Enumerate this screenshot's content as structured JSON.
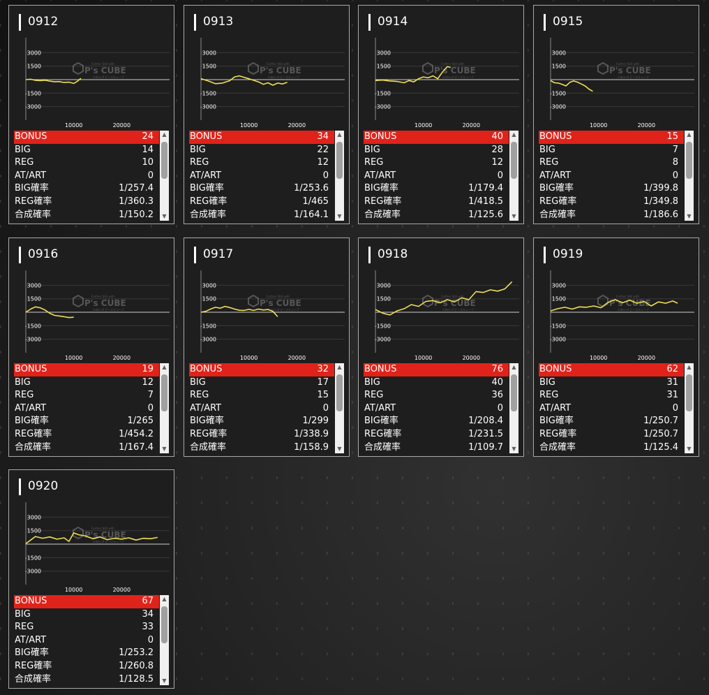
{
  "chart_axis": {
    "y_ticks": [
      "3000",
      "1500",
      "-1500",
      "-3000"
    ],
    "x_ticks": [
      "10000",
      "20000"
    ],
    "ylim": [
      -4200,
      4200
    ],
    "xlim": [
      0,
      30000
    ]
  },
  "watermark": {
    "logo_text": "P's CUBE",
    "tagline": "Further Still with",
    "subline": "index of ピーズキューブ"
  },
  "colors": {
    "line": "#f0e050",
    "bonus_bg": "#e0231a",
    "card_bg": "#1e1e1e"
  },
  "stat_labels": {
    "bonus": "BONUS",
    "big": "BIG",
    "reg": "REG",
    "at": "AT/ART",
    "big_prob": "BIG確率",
    "reg_prob": "REG確率",
    "total_prob": "合成確率"
  },
  "scroll_up_icon": "▲",
  "scroll_down_icon": "▼",
  "cards": [
    {
      "id": "0912",
      "stats": {
        "bonus": "24",
        "big": "14",
        "reg": "10",
        "at": "0",
        "big_prob": "1/257.4",
        "reg_prob": "1/360.3",
        "total_prob": "1/150.2"
      },
      "chart_data": {
        "type": "line",
        "x": [
          0,
          1000,
          2000,
          3000,
          4000,
          5000,
          6000,
          7000,
          8000,
          9000,
          10000,
          10700,
          11500
        ],
        "y": [
          0,
          50,
          -80,
          -120,
          -60,
          -160,
          -240,
          -220,
          -320,
          -280,
          -420,
          -200,
          150
        ]
      }
    },
    {
      "id": "0913",
      "stats": {
        "bonus": "34",
        "big": "22",
        "reg": "12",
        "at": "0",
        "big_prob": "1/253.6",
        "reg_prob": "1/465",
        "total_prob": "1/164.1"
      },
      "chart_data": {
        "type": "line",
        "x": [
          0,
          1500,
          3000,
          4500,
          6000,
          7000,
          8000,
          9000,
          10000,
          11000,
          12000,
          13000,
          14000,
          15000,
          16000,
          17000,
          18000
        ],
        "y": [
          100,
          -150,
          -450,
          -380,
          -120,
          300,
          420,
          250,
          100,
          -80,
          -250,
          -520,
          -350,
          -620,
          -380,
          -480,
          -300
        ]
      }
    },
    {
      "id": "0914",
      "stats": {
        "bonus": "40",
        "big": "28",
        "reg": "12",
        "at": "0",
        "big_prob": "1/179.4",
        "reg_prob": "1/418.5",
        "total_prob": "1/125.6"
      },
      "chart_data": {
        "type": "line",
        "x": [
          0,
          1500,
          3000,
          4500,
          6000,
          7000,
          8000,
          9000,
          10000,
          11000,
          12000,
          13000,
          14000,
          15000,
          15700
        ],
        "y": [
          -100,
          -50,
          -150,
          -200,
          -350,
          -100,
          -250,
          100,
          300,
          200,
          420,
          100,
          850,
          1450,
          1350
        ]
      }
    },
    {
      "id": "0915",
      "stats": {
        "bonus": "15",
        "big": "7",
        "reg": "8",
        "at": "0",
        "big_prob": "1/399.8",
        "reg_prob": "1/349.8",
        "total_prob": "1/186.6"
      },
      "chart_data": {
        "type": "line",
        "x": [
          0,
          800,
          1600,
          2400,
          3200,
          4000,
          4800,
          5600,
          6400,
          7200,
          8000,
          8800
        ],
        "y": [
          -100,
          -350,
          -380,
          -520,
          -700,
          -300,
          -150,
          -280,
          -480,
          -700,
          -1050,
          -1300
        ]
      }
    },
    {
      "id": "0916",
      "stats": {
        "bonus": "19",
        "big": "12",
        "reg": "7",
        "at": "0",
        "big_prob": "1/265",
        "reg_prob": "1/454.2",
        "total_prob": "1/167.4"
      },
      "chart_data": {
        "type": "line",
        "x": [
          0,
          1000,
          2000,
          3000,
          4000,
          5000,
          6000,
          7000,
          8000,
          9000,
          10000
        ],
        "y": [
          0,
          350,
          600,
          500,
          250,
          -120,
          -350,
          -420,
          -500,
          -600,
          -550
        ]
      }
    },
    {
      "id": "0917",
      "stats": {
        "bonus": "32",
        "big": "17",
        "reg": "15",
        "at": "0",
        "big_prob": "1/299",
        "reg_prob": "1/338.9",
        "total_prob": "1/158.9"
      },
      "chart_data": {
        "type": "line",
        "x": [
          0,
          1000,
          2000,
          3000,
          4000,
          5000,
          6000,
          7000,
          8000,
          9000,
          10000,
          11000,
          12000,
          13000,
          14000,
          15000,
          16000
        ],
        "y": [
          0,
          100,
          350,
          550,
          450,
          650,
          520,
          350,
          220,
          200,
          320,
          200,
          350,
          250,
          300,
          100,
          -500
        ]
      }
    },
    {
      "id": "0918",
      "stats": {
        "bonus": "76",
        "big": "40",
        "reg": "36",
        "at": "0",
        "big_prob": "1/208.4",
        "reg_prob": "1/231.5",
        "total_prob": "1/109.7"
      },
      "chart_data": {
        "type": "line",
        "x": [
          0,
          1500,
          3000,
          4500,
          6000,
          7500,
          9000,
          10500,
          12000,
          13500,
          15000,
          16500,
          18000,
          19500,
          21000,
          22500,
          24000,
          25500,
          27000,
          28500
        ],
        "y": [
          300,
          -100,
          -300,
          150,
          400,
          850,
          650,
          1200,
          1300,
          1050,
          1400,
          1150,
          1600,
          1400,
          2300,
          2200,
          2500,
          2350,
          2600,
          3400
        ]
      }
    },
    {
      "id": "0919",
      "stats": {
        "bonus": "62",
        "big": "31",
        "reg": "31",
        "at": "0",
        "big_prob": "1/250.7",
        "reg_prob": "1/250.7",
        "total_prob": "1/125.4"
      },
      "chart_data": {
        "type": "line",
        "x": [
          0,
          1500,
          3000,
          4500,
          6000,
          7500,
          9000,
          10500,
          12000,
          13500,
          15000,
          16500,
          18000,
          19500,
          21000,
          22500,
          24000,
          25500,
          26500
        ],
        "y": [
          150,
          400,
          550,
          350,
          600,
          550,
          700,
          500,
          1100,
          1400,
          1050,
          1350,
          1000,
          1200,
          700,
          1150,
          1000,
          1250,
          1000
        ]
      }
    },
    {
      "id": "0920",
      "stats": {
        "bonus": "67",
        "big": "34",
        "reg": "33",
        "at": "0",
        "big_prob": "1/253.2",
        "reg_prob": "1/260.8",
        "total_prob": "1/128.5"
      },
      "chart_data": {
        "type": "line",
        "x": [
          0,
          1000,
          2000,
          3500,
          5000,
          6500,
          8000,
          9000,
          10000,
          11000,
          12500,
          14000,
          15500,
          17000,
          18500,
          20000,
          21500,
          23000,
          24500,
          26000,
          27500
        ],
        "y": [
          50,
          450,
          850,
          650,
          800,
          550,
          700,
          300,
          1250,
          1050,
          900,
          600,
          800,
          500,
          650,
          550,
          700,
          450,
          650,
          600,
          750
        ]
      }
    }
  ]
}
